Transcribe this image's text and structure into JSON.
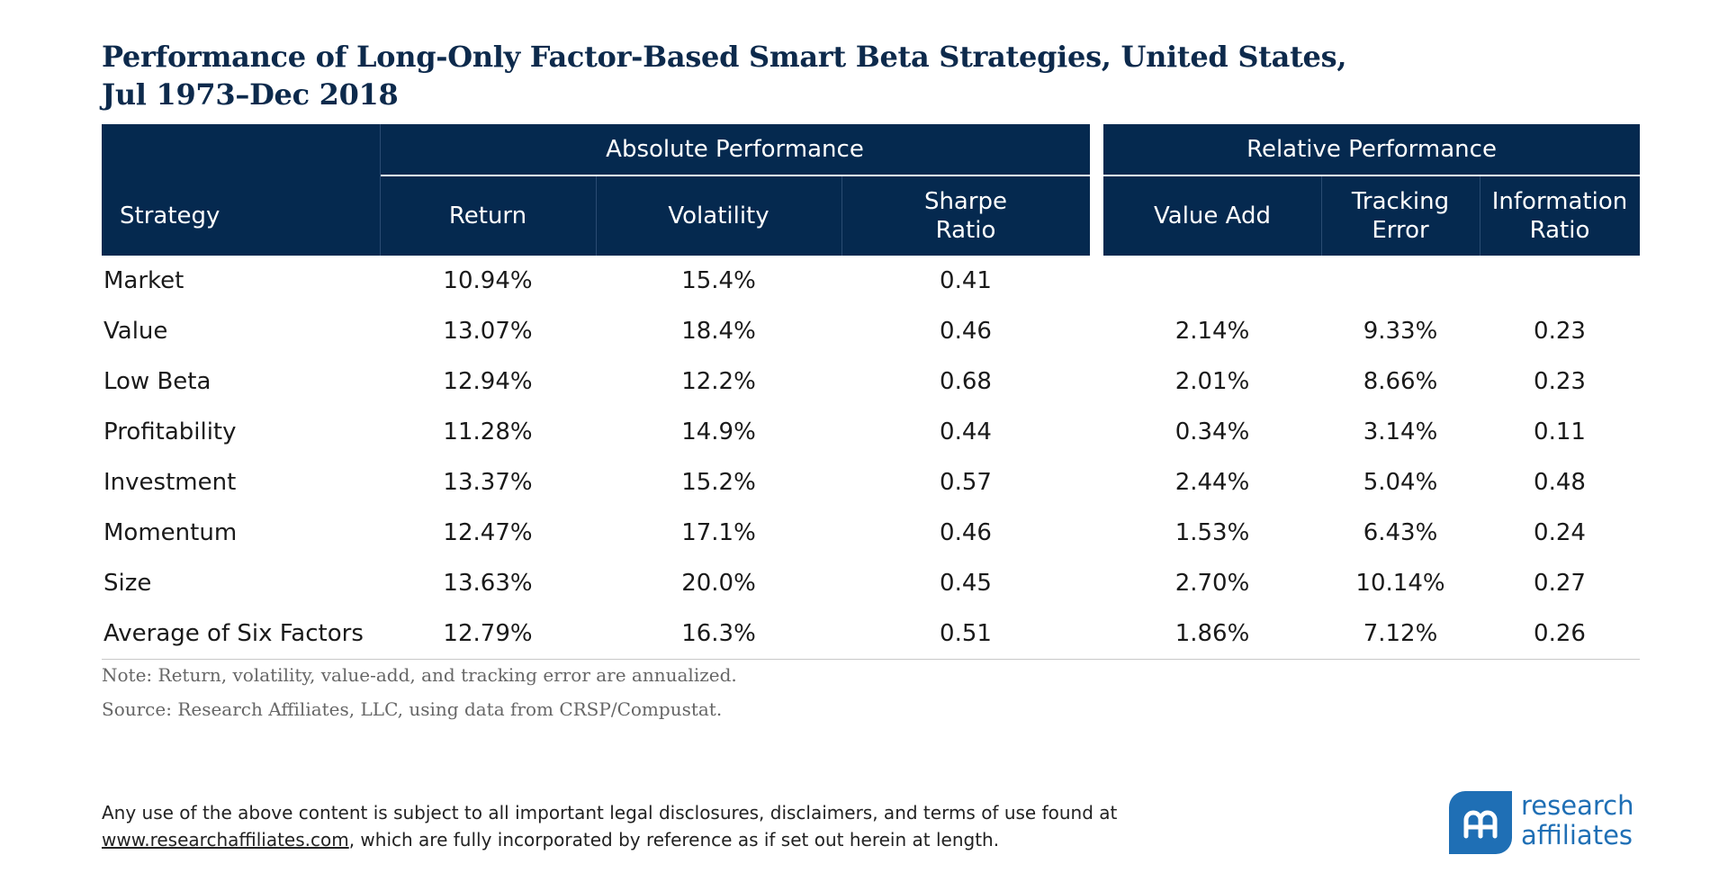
{
  "title": {
    "line1": "Performance of Long-Only Factor-Based Smart Beta Strategies, United States,",
    "line2": "Jul 1973–Dec 2018"
  },
  "table": {
    "group_headers": {
      "absolute": "Absolute Performance",
      "relative": "Relative Performance"
    },
    "columns": {
      "strategy": "Strategy",
      "return": "Return",
      "volatility": "Volatility",
      "sharpe_1": "Sharpe",
      "sharpe_2": "Ratio",
      "value_add": "Value Add",
      "tracking_1": "Tracking",
      "tracking_2": "Error",
      "info_1": "Information",
      "info_2": "Ratio"
    },
    "rows": [
      {
        "strategy": "Market",
        "return": "10.94%",
        "volatility": "15.4%",
        "sharpe": "0.41",
        "value_add": "",
        "tracking_error": "",
        "information_ratio": ""
      },
      {
        "strategy": "Value",
        "return": "13.07%",
        "volatility": "18.4%",
        "sharpe": "0.46",
        "value_add": "2.14%",
        "tracking_error": "9.33%",
        "information_ratio": "0.23"
      },
      {
        "strategy": "Low Beta",
        "return": "12.94%",
        "volatility": "12.2%",
        "sharpe": "0.68",
        "value_add": "2.01%",
        "tracking_error": "8.66%",
        "information_ratio": "0.23"
      },
      {
        "strategy": "Profitability",
        "return": "11.28%",
        "volatility": "14.9%",
        "sharpe": "0.44",
        "value_add": "0.34%",
        "tracking_error": "3.14%",
        "information_ratio": "0.11"
      },
      {
        "strategy": "Investment",
        "return": "13.37%",
        "volatility": "15.2%",
        "sharpe": "0.57",
        "value_add": "2.44%",
        "tracking_error": "5.04%",
        "information_ratio": "0.48"
      },
      {
        "strategy": "Momentum",
        "return": "12.47%",
        "volatility": "17.1%",
        "sharpe": "0.46",
        "value_add": "1.53%",
        "tracking_error": "6.43%",
        "information_ratio": "0.24"
      },
      {
        "strategy": "Size",
        "return": "13.63%",
        "volatility": "20.0%",
        "sharpe": "0.45",
        "value_add": "2.70%",
        "tracking_error": "10.14%",
        "information_ratio": "0.27"
      },
      {
        "strategy": "Average of Six Factors",
        "return": "12.79%",
        "volatility": "16.3%",
        "sharpe": "0.51",
        "value_add": "1.86%",
        "tracking_error": "7.12%",
        "information_ratio": "0.26"
      }
    ]
  },
  "notes": {
    "note": "Note: Return, volatility, value-add, and tracking error are annualized.",
    "source": "Source: Research Affiliates, LLC, using data from CRSP/Compustat."
  },
  "legal": {
    "line1": "Any use of the above content is subject to all important legal disclosures, disclaimers, and terms of use found at",
    "link": "www.researchaffiliates.com",
    "line2_rest": ", which are fully incorporated by reference as if set out herein at length."
  },
  "logo": {
    "line1": "research",
    "line2": "affiliates",
    "mark_icon": "ra-monogram-icon",
    "color": "#1f6fb5"
  },
  "colors": {
    "header_bg": "#05294f",
    "title": "#0d2a4c"
  }
}
